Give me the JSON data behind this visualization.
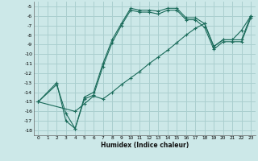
{
  "xlabel": "Humidex (Indice chaleur)",
  "background_color": "#cce8e8",
  "grid_color": "#aacfcf",
  "line_color": "#1a6b5a",
  "xlim": [
    -0.5,
    23.5
  ],
  "ylim": [
    -18.5,
    -4.5
  ],
  "xticks": [
    0,
    1,
    2,
    3,
    4,
    5,
    6,
    7,
    8,
    9,
    10,
    11,
    12,
    13,
    14,
    15,
    16,
    17,
    18,
    19,
    20,
    21,
    22,
    23
  ],
  "yticks": [
    -5,
    -6,
    -7,
    -8,
    -9,
    -10,
    -11,
    -12,
    -13,
    -14,
    -15,
    -16,
    -17,
    -18
  ],
  "series": [
    {
      "x": [
        0,
        2,
        3,
        4,
        5,
        6,
        7,
        8,
        9,
        10,
        11,
        12,
        13,
        14,
        15,
        16,
        17,
        18,
        19,
        20,
        21,
        22,
        23
      ],
      "y": [
        -15,
        -13,
        -17,
        -17.8,
        -14.5,
        -14,
        -11,
        -8.5,
        -6.8,
        -5.2,
        -5.4,
        -5.4,
        -5.5,
        -5.2,
        -5.2,
        -6.2,
        -6.2,
        -6.8,
        -9.2,
        -8.5,
        -8.5,
        -8.5,
        -6.0
      ]
    },
    {
      "x": [
        0,
        2,
        3,
        4,
        5,
        6,
        7,
        8,
        9,
        10,
        11,
        12,
        13,
        14,
        15,
        16,
        17,
        18,
        19,
        20,
        21,
        22,
        23
      ],
      "y": [
        -15,
        -13.2,
        -16.2,
        -17.8,
        -14.7,
        -14.3,
        -11.3,
        -8.8,
        -7.0,
        -5.4,
        -5.6,
        -5.6,
        -5.8,
        -5.4,
        -5.4,
        -6.4,
        -6.4,
        -7.2,
        -9.5,
        -8.7,
        -8.7,
        -8.7,
        -6.2
      ]
    },
    {
      "x": [
        0,
        4,
        5,
        6,
        7,
        8,
        9,
        10,
        11,
        12,
        13,
        14,
        15,
        16,
        17,
        18,
        19,
        20,
        21,
        22,
        23
      ],
      "y": [
        -15,
        -16,
        -15.2,
        -14.4,
        -14.7,
        -14.0,
        -13.2,
        -12.5,
        -11.8,
        -11.0,
        -10.3,
        -9.6,
        -8.8,
        -8.0,
        -7.3,
        -6.8,
        -9.2,
        -8.5,
        -8.5,
        -7.5,
        -6.0
      ]
    }
  ]
}
